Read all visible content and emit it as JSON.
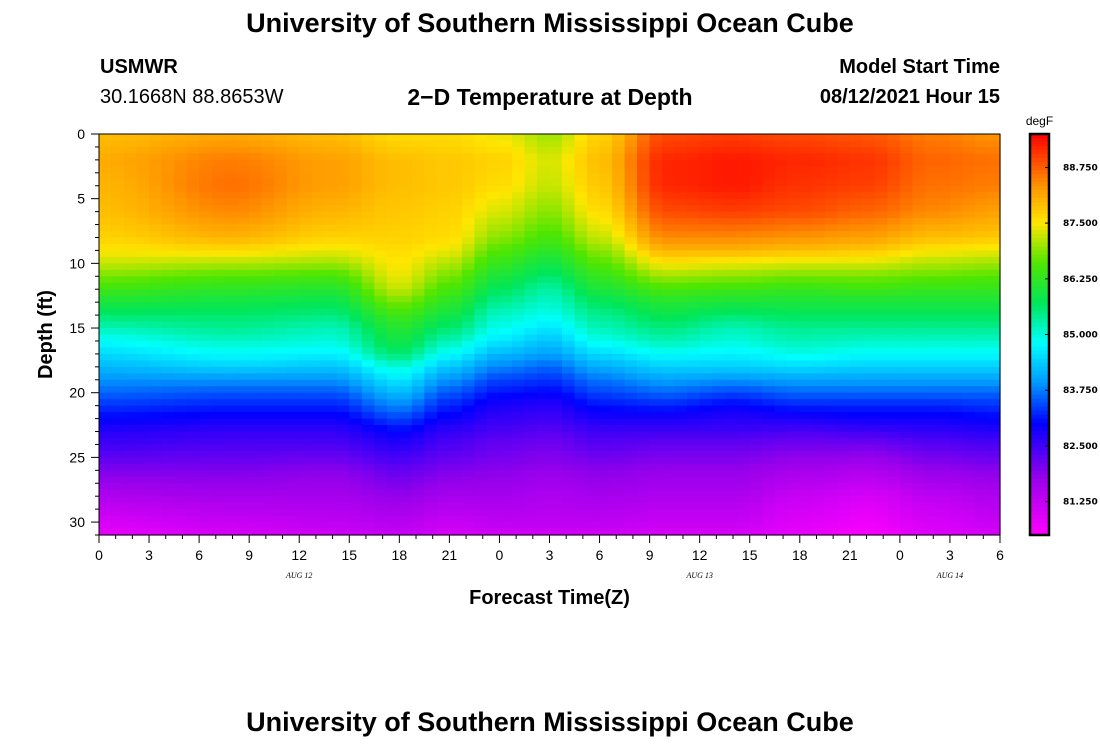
{
  "header": {
    "title": "University of Southern Mississippi Ocean Cube",
    "station": "USMWR",
    "coordinates": "30.1668N  88.8653W",
    "subtitle": "2−D Temperature at Depth",
    "start_label": "Model Start Time",
    "start_value": "08/12/2021 Hour 15"
  },
  "footer": {
    "title": "University of Southern Mississippi Ocean Cube"
  },
  "chart_data": {
    "type": "heatmap",
    "title": "2−D Temperature at Depth",
    "xlabel": "Forecast Time(Z)",
    "ylabel": "Depth (ft)",
    "x_range_hours": [
      0,
      54
    ],
    "y_range_ft": [
      0,
      31
    ],
    "x_ticks": [
      {
        "hour": 0,
        "label": "0"
      },
      {
        "hour": 3,
        "label": "3"
      },
      {
        "hour": 6,
        "label": "6"
      },
      {
        "hour": 9,
        "label": "9"
      },
      {
        "hour": 12,
        "label": "12"
      },
      {
        "hour": 15,
        "label": "15"
      },
      {
        "hour": 18,
        "label": "18"
      },
      {
        "hour": 21,
        "label": "21"
      },
      {
        "hour": 24,
        "label": "0"
      },
      {
        "hour": 27,
        "label": "3"
      },
      {
        "hour": 30,
        "label": "6"
      },
      {
        "hour": 33,
        "label": "9"
      },
      {
        "hour": 36,
        "label": "12"
      },
      {
        "hour": 39,
        "label": "15"
      },
      {
        "hour": 42,
        "label": "18"
      },
      {
        "hour": 45,
        "label": "21"
      },
      {
        "hour": 48,
        "label": "0"
      },
      {
        "hour": 51,
        "label": "3"
      },
      {
        "hour": 54,
        "label": "6"
      }
    ],
    "date_labels": [
      {
        "hour": 12,
        "label": "AUG  12"
      },
      {
        "hour": 36,
        "label": "AUG  13"
      },
      {
        "hour": 51,
        "label": "AUG  14"
      }
    ],
    "y_ticks": [
      0,
      5,
      10,
      15,
      20,
      25,
      30
    ],
    "colorbar": {
      "unit": "degF",
      "range": [
        80.5,
        89.5
      ],
      "ticks": [
        {
          "value": 81.25,
          "label": "81.250"
        },
        {
          "value": 82.5,
          "label": "82.500"
        },
        {
          "value": 83.75,
          "label": "83.750"
        },
        {
          "value": 85.0,
          "label": "85.000"
        },
        {
          "value": 86.25,
          "label": "86.250"
        },
        {
          "value": 87.5,
          "label": "87.500"
        },
        {
          "value": 88.75,
          "label": "88.750"
        }
      ]
    },
    "profiles": {
      "description": "temperature (degF) vs depth (ft) at key forecast hours, interpolated in time and depth",
      "depths": [
        0,
        2,
        4,
        6,
        8,
        9,
        10,
        11,
        12,
        13,
        14,
        15,
        16,
        17,
        18,
        19,
        20,
        21,
        22,
        23,
        24,
        26,
        28,
        30,
        31
      ],
      "columns": [
        {
          "hour": 0,
          "temps": [
            87.9,
            88.1,
            88.0,
            87.9,
            87.7,
            87.5,
            87.2,
            86.8,
            86.4,
            86.0,
            85.6,
            85.2,
            84.8,
            84.5,
            84.2,
            83.9,
            83.6,
            83.3,
            83.0,
            82.7,
            82.5,
            82.0,
            81.5,
            81.0,
            80.8
          ]
        },
        {
          "hour": 8,
          "temps": [
            88.1,
            88.5,
            88.6,
            88.4,
            88.0,
            87.6,
            87.1,
            86.6,
            86.2,
            85.9,
            85.6,
            85.4,
            85.1,
            84.8,
            84.4,
            83.9,
            83.5,
            83.2,
            82.9,
            82.6,
            82.4,
            82.0,
            81.6,
            81.2,
            81.0
          ]
        },
        {
          "hour": 14,
          "temps": [
            87.9,
            88.2,
            88.2,
            88.0,
            87.7,
            87.4,
            87.0,
            86.5,
            86.1,
            85.8,
            85.5,
            85.2,
            85.0,
            84.7,
            84.3,
            83.9,
            83.5,
            83.2,
            82.9,
            82.6,
            82.4,
            81.9,
            81.6,
            81.3,
            81.1
          ]
        },
        {
          "hour": 18,
          "temps": [
            87.6,
            87.9,
            87.9,
            87.8,
            87.7,
            87.6,
            87.5,
            87.4,
            87.2,
            86.8,
            86.4,
            86.1,
            85.9,
            85.6,
            85.0,
            84.6,
            84.2,
            83.8,
            83.4,
            83.0,
            82.7,
            82.2,
            81.8,
            81.4,
            81.2
          ]
        },
        {
          "hour": 21,
          "temps": [
            87.6,
            87.8,
            87.8,
            87.7,
            87.6,
            87.4,
            87.1,
            86.8,
            86.5,
            86.2,
            85.9,
            85.6,
            85.2,
            84.8,
            84.3,
            83.9,
            83.5,
            83.2,
            82.9,
            82.6,
            82.4,
            82.0,
            81.6,
            81.2,
            81.0
          ]
        },
        {
          "hour": 24,
          "temps": [
            87.4,
            87.7,
            87.6,
            87.3,
            86.9,
            86.6,
            86.3,
            86.0,
            85.7,
            85.4,
            85.1,
            84.9,
            84.6,
            84.2,
            83.8,
            83.4,
            83.1,
            82.8,
            82.6,
            82.4,
            82.2,
            81.9,
            81.6,
            81.3,
            81.1
          ]
        },
        {
          "hour": 27,
          "temps": [
            87.0,
            87.3,
            87.2,
            86.9,
            86.5,
            86.2,
            85.9,
            85.6,
            85.3,
            85.1,
            84.9,
            84.6,
            84.3,
            84.0,
            83.6,
            83.3,
            83.0,
            82.7,
            82.5,
            82.3,
            82.1,
            81.8,
            81.5,
            81.3,
            81.1
          ]
        },
        {
          "hour": 30,
          "temps": [
            87.7,
            87.9,
            87.8,
            87.6,
            87.2,
            86.9,
            86.6,
            86.3,
            86.0,
            85.7,
            85.4,
            85.2,
            84.9,
            84.5,
            84.1,
            83.7,
            83.4,
            83.1,
            82.8,
            82.5,
            82.3,
            81.9,
            81.6,
            81.3,
            81.1
          ]
        },
        {
          "hour": 34,
          "temps": [
            88.9,
            89.2,
            89.2,
            88.9,
            88.4,
            88.0,
            87.5,
            87.0,
            86.5,
            86.1,
            85.8,
            85.5,
            85.2,
            84.8,
            84.4,
            84.0,
            83.6,
            83.2,
            82.8,
            82.5,
            82.2,
            81.8,
            81.5,
            81.2,
            81.0
          ]
        },
        {
          "hour": 38,
          "temps": [
            89.0,
            89.3,
            89.3,
            89.0,
            88.4,
            88.0,
            87.4,
            86.9,
            86.4,
            86.0,
            85.6,
            85.2,
            85.0,
            84.7,
            84.4,
            83.9,
            83.4,
            83.0,
            82.7,
            82.5,
            82.2,
            81.8,
            81.5,
            81.2,
            81.0
          ]
        },
        {
          "hour": 42,
          "temps": [
            88.9,
            89.2,
            89.1,
            88.9,
            88.3,
            87.9,
            87.3,
            86.8,
            86.3,
            86.0,
            85.7,
            85.4,
            85.2,
            84.9,
            84.5,
            84.0,
            83.6,
            83.2,
            82.8,
            82.4,
            82.1,
            81.6,
            81.2,
            80.9,
            80.8
          ]
        },
        {
          "hour": 46,
          "temps": [
            88.8,
            89.1,
            89.0,
            88.7,
            88.2,
            87.8,
            87.3,
            86.8,
            86.4,
            86.0,
            85.7,
            85.4,
            85.1,
            84.8,
            84.4,
            84.0,
            83.6,
            83.2,
            82.9,
            82.5,
            82.1,
            81.5,
            81.0,
            80.7,
            80.6
          ]
        },
        {
          "hour": 50,
          "temps": [
            88.5,
            88.7,
            88.6,
            88.4,
            87.9,
            87.5,
            87.1,
            86.7,
            86.3,
            86.0,
            85.7,
            85.4,
            85.1,
            84.8,
            84.4,
            84.0,
            83.6,
            83.2,
            82.9,
            82.6,
            82.3,
            81.8,
            81.3,
            81.0,
            80.9
          ]
        },
        {
          "hour": 54,
          "temps": [
            88.3,
            88.6,
            88.5,
            88.2,
            87.8,
            87.4,
            87.0,
            86.6,
            86.3,
            86.0,
            85.7,
            85.4,
            85.1,
            84.8,
            84.4,
            84.0,
            83.6,
            83.3,
            83.0,
            82.7,
            82.4,
            81.9,
            81.5,
            81.2,
            81.0
          ]
        }
      ]
    }
  }
}
